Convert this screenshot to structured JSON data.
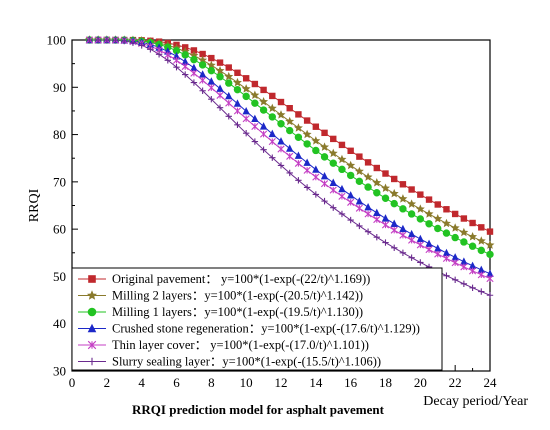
{
  "chart_data": {
    "type": "line",
    "caption": "RRQI prediction model for asphalt pavement",
    "xlabel": "Decay period/Year",
    "ylabel": "RRQI",
    "xlim": [
      0,
      24
    ],
    "ylim": [
      30,
      100
    ],
    "xticks": [
      0,
      2,
      4,
      6,
      8,
      10,
      12,
      14,
      16,
      18,
      20,
      22,
      24
    ],
    "yticks": [
      30,
      40,
      50,
      60,
      70,
      80,
      90,
      100
    ],
    "grid": false,
    "legend_position": "bottom-left",
    "x": [
      1,
      1.5,
      2,
      2.5,
      3,
      3.5,
      4,
      4.5,
      5,
      5.5,
      6,
      6.5,
      7,
      7.5,
      8,
      8.5,
      9,
      9.5,
      10,
      10.5,
      11,
      11.5,
      12,
      12.5,
      13,
      13.5,
      14,
      14.5,
      15,
      15.5,
      16,
      16.5,
      17,
      17.5,
      18,
      18.5,
      19,
      19.5,
      20,
      20.5,
      21,
      21.5,
      22,
      22.5,
      23,
      23.5,
      24
    ],
    "series": [
      {
        "label": "Original pavement：  y=100*(1-exp(-(22/t)^1.169))",
        "a": 22,
        "b": 1.169,
        "color": "#c0282d",
        "marker": "square"
      },
      {
        "label": "Milling 2 layers：y=100*(1-exp(-(20.5/t)^1.142))",
        "a": 20.5,
        "b": 1.142,
        "color": "#8a7a2c",
        "marker": "star"
      },
      {
        "label": "Milling 1 layers：y=100*(1-exp(-(19.5/t)^1.130))",
        "a": 19.5,
        "b": 1.13,
        "color": "#22c322",
        "marker": "circle"
      },
      {
        "label": "Crushed stone regeneration：y=100*(1-exp(-(17.6/t)^1.129))",
        "a": 17.6,
        "b": 1.129,
        "color": "#1c28c8",
        "marker": "triangle"
      },
      {
        "label": "Thin layer cover： y=100*(1-exp(-(17.0/t)^1.101))",
        "a": 17.0,
        "b": 1.101,
        "color": "#c43fc4",
        "marker": "x"
      },
      {
        "label": "Slurry sealing layer：y=100*(1-exp(-(15.5/t)^1.106))",
        "a": 15.5,
        "b": 1.106,
        "color": "#6a2a8e",
        "marker": "plus"
      }
    ]
  }
}
